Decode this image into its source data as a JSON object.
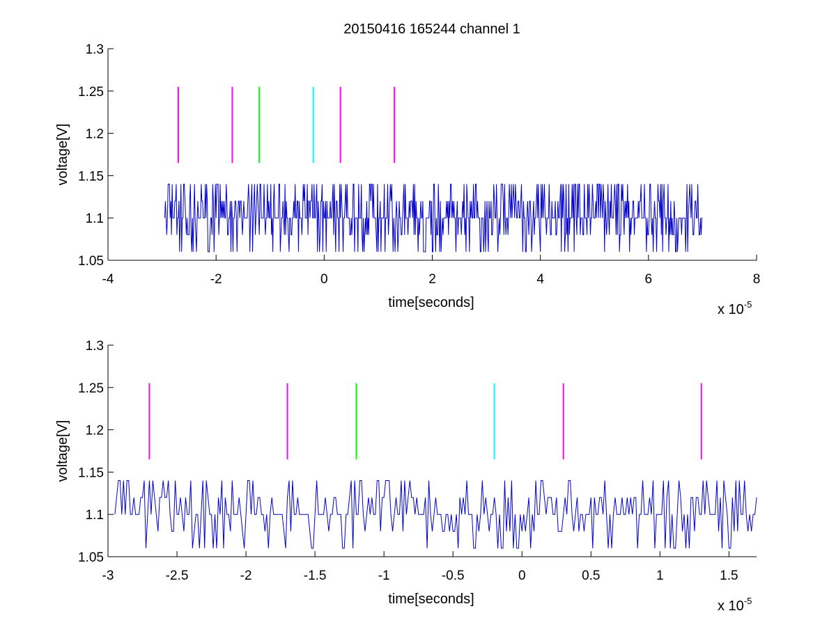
{
  "figure": {
    "title": "20150416 165244 channel 1",
    "colors": {
      "signal": "#0000cc",
      "magenta": "#ff00ff",
      "green": "#00ff00",
      "cyan": "#00ffff",
      "axes": "#000000"
    }
  },
  "chart_data": [
    {
      "type": "line",
      "title": "20150416 165244 channel 1",
      "xlabel": "time[seconds]",
      "ylabel": "voltage[V]",
      "x_multiplier": "x 10",
      "x_exponent": "-5",
      "xlim": [
        -4,
        8
      ],
      "ylim": [
        1.05,
        1.3
      ],
      "xticks": [
        "-4",
        "-2",
        "0",
        "2",
        "4",
        "6",
        "8"
      ],
      "yticks": [
        "1.05",
        "1.1",
        "1.15",
        "1.2",
        "1.25",
        "1.3"
      ],
      "grid": false,
      "signal": {
        "x_start": -2.95,
        "x_end": 7.0,
        "baseline": 1.1,
        "levels": [
          1.06,
          1.08,
          1.1,
          1.12,
          1.14
        ],
        "color": "#0000cc"
      },
      "markers": [
        {
          "x": -2.7,
          "y_min": 1.165,
          "y_max": 1.255,
          "color": "#ff00ff"
        },
        {
          "x": -1.7,
          "y_min": 1.165,
          "y_max": 1.255,
          "color": "#ff00ff"
        },
        {
          "x": -1.2,
          "y_min": 1.165,
          "y_max": 1.255,
          "color": "#00ff00"
        },
        {
          "x": -0.2,
          "y_min": 1.165,
          "y_max": 1.255,
          "color": "#00ffff"
        },
        {
          "x": 0.3,
          "y_min": 1.165,
          "y_max": 1.255,
          "color": "#ff00ff"
        },
        {
          "x": 1.3,
          "y_min": 1.165,
          "y_max": 1.255,
          "color": "#ff00ff"
        }
      ]
    },
    {
      "type": "line",
      "title": "",
      "xlabel": "time[seconds]",
      "ylabel": "voltage[V]",
      "x_multiplier": "x 10",
      "x_exponent": "-5",
      "xlim": [
        -3.0,
        1.7
      ],
      "ylim": [
        1.05,
        1.3
      ],
      "xticks": [
        "-3",
        "-2.5",
        "-2",
        "-1.5",
        "-1",
        "-0.5",
        "0",
        "0.5",
        "1",
        "1.5"
      ],
      "yticks": [
        "1.05",
        "1.1",
        "1.15",
        "1.2",
        "1.25",
        "1.3"
      ],
      "grid": false,
      "signal": {
        "x_start": -2.95,
        "x_end": 1.7,
        "baseline": 1.1,
        "levels": [
          1.06,
          1.08,
          1.1,
          1.12,
          1.14
        ],
        "color": "#0000cc"
      },
      "markers": [
        {
          "x": -2.7,
          "y_min": 1.165,
          "y_max": 1.255,
          "color": "#ff00ff"
        },
        {
          "x": -1.7,
          "y_min": 1.165,
          "y_max": 1.255,
          "color": "#ff00ff"
        },
        {
          "x": -1.2,
          "y_min": 1.165,
          "y_max": 1.255,
          "color": "#00ff00"
        },
        {
          "x": -0.2,
          "y_min": 1.165,
          "y_max": 1.255,
          "color": "#00ffff"
        },
        {
          "x": 0.3,
          "y_min": 1.165,
          "y_max": 1.255,
          "color": "#ff00ff"
        },
        {
          "x": 1.3,
          "y_min": 1.165,
          "y_max": 1.255,
          "color": "#ff00ff"
        }
      ]
    }
  ]
}
